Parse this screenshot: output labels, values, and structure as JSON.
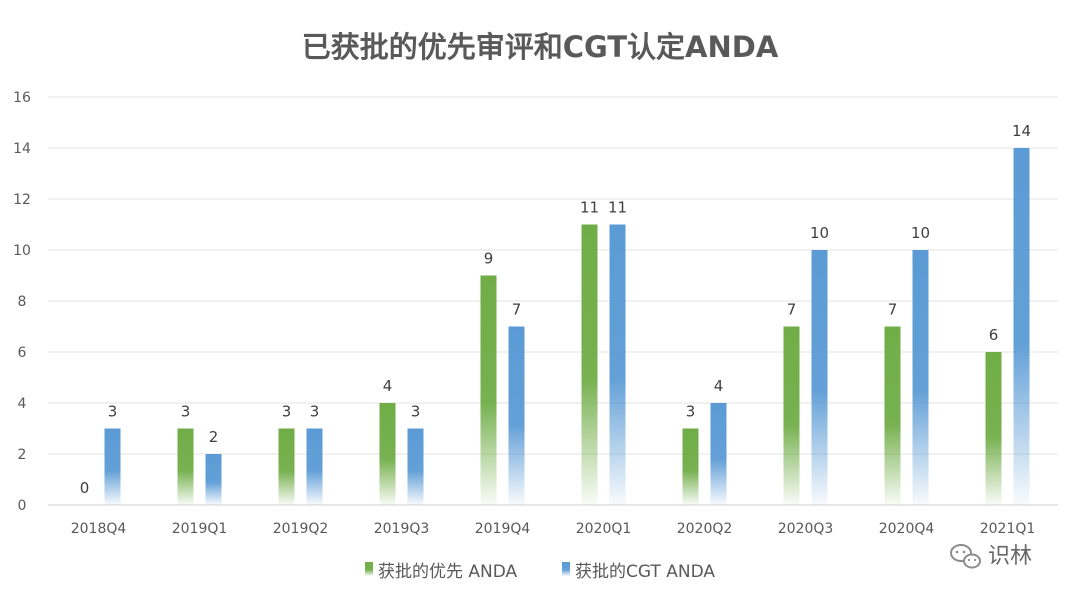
{
  "chart_data": {
    "type": "bar",
    "title": "已获批的优先审评和CGT认定ANDA",
    "categories": [
      "2018Q4",
      "2019Q1",
      "2019Q2",
      "2019Q3",
      "2019Q4",
      "2020Q1",
      "2020Q2",
      "2020Q3",
      "2020Q4",
      "2021Q1"
    ],
    "series": [
      {
        "name": "获批的优先 ANDA",
        "color": "#70ad47",
        "values": [
          0,
          3,
          3,
          4,
          9,
          11,
          3,
          7,
          7,
          6
        ]
      },
      {
        "name": "获批的CGT ANDA",
        "color": "#5b9bd5",
        "values": [
          3,
          2,
          3,
          3,
          7,
          11,
          4,
          10,
          10,
          14
        ]
      }
    ],
    "xlabel": "",
    "ylabel": "",
    "ylim": [
      0,
      16
    ],
    "yticks": [
      0,
      2,
      4,
      6,
      8,
      10,
      12,
      14,
      16
    ],
    "grid": true,
    "legend_position": "bottom",
    "data_labels": true
  },
  "watermark": {
    "text": "识林",
    "icon": "wechat-icon"
  }
}
